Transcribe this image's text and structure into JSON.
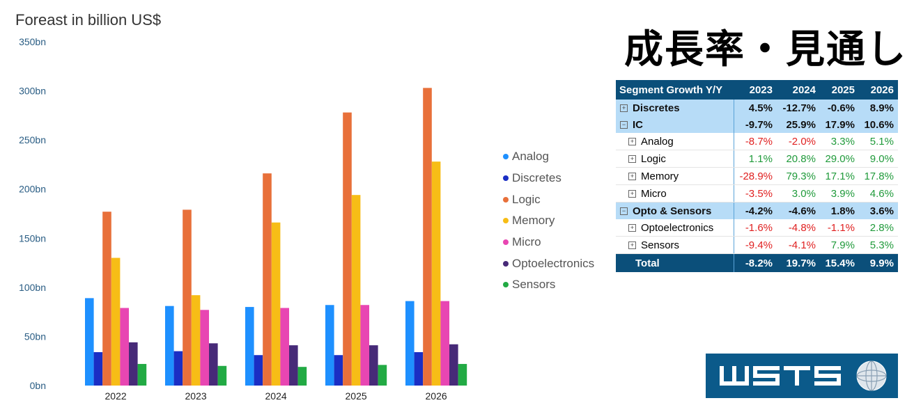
{
  "chart_data": {
    "type": "bar",
    "title": "Foreast in billion US$",
    "categories": [
      "2022",
      "2023",
      "2024",
      "2025",
      "2026"
    ],
    "series": [
      {
        "name": "Analog",
        "color": "#1e90ff",
        "values": [
          89,
          81,
          80,
          82,
          86
        ]
      },
      {
        "name": "Discretes",
        "color": "#1a2ec4",
        "values": [
          34,
          35,
          31,
          31,
          34
        ]
      },
      {
        "name": "Logic",
        "color": "#e8703a",
        "values": [
          177,
          179,
          216,
          278,
          303
        ]
      },
      {
        "name": "Memory",
        "color": "#f7bd16",
        "values": [
          130,
          92,
          166,
          194,
          228
        ]
      },
      {
        "name": "Micro",
        "color": "#e846b2",
        "values": [
          79,
          77,
          79,
          82,
          86
        ]
      },
      {
        "name": "Optoelectronics",
        "color": "#472a78",
        "values": [
          44,
          43,
          41,
          41,
          42
        ]
      },
      {
        "name": "Sensors",
        "color": "#22aa44",
        "values": [
          22,
          20,
          19,
          21,
          22
        ]
      }
    ],
    "yticks": [
      "0bn",
      "50bn",
      "100bn",
      "150bn",
      "200bn",
      "250bn",
      "300bn",
      "350bn"
    ],
    "ylim": [
      0,
      350
    ],
    "xlabel": "",
    "ylabel": "",
    "legend_position": "right",
    "grid": false
  },
  "heading": "成長率・見通し",
  "table": {
    "header": [
      "Segment Growth Y/Y",
      "2023",
      "2024",
      "2025",
      "2026"
    ],
    "rows": [
      {
        "type": "grp",
        "icon": "⊞",
        "label": "Discretes",
        "values": [
          "4.5%",
          "-12.7%",
          "-0.6%",
          "8.9%"
        ]
      },
      {
        "type": "grp",
        "icon": "⊟",
        "label": "IC",
        "values": [
          "-9.7%",
          "25.9%",
          "17.9%",
          "10.6%"
        ]
      },
      {
        "type": "sub",
        "icon": "⊞",
        "label": "Analog",
        "values": [
          "-8.7%",
          "-2.0%",
          "3.3%",
          "5.1%"
        ]
      },
      {
        "type": "sub",
        "icon": "⊞",
        "label": "Logic",
        "values": [
          "1.1%",
          "20.8%",
          "29.0%",
          "9.0%"
        ]
      },
      {
        "type": "sub",
        "icon": "⊞",
        "label": "Memory",
        "values": [
          "-28.9%",
          "79.3%",
          "17.1%",
          "17.8%"
        ]
      },
      {
        "type": "sub",
        "icon": "⊞",
        "label": "Micro",
        "values": [
          "-3.5%",
          "3.0%",
          "3.9%",
          "4.6%"
        ]
      },
      {
        "type": "grp",
        "icon": "⊟",
        "label": "Opto & Sensors",
        "values": [
          "-4.2%",
          "-4.6%",
          "1.8%",
          "3.6%"
        ]
      },
      {
        "type": "sub",
        "icon": "⊞",
        "label": "Optoelectronics",
        "values": [
          "-1.6%",
          "-4.8%",
          "-1.1%",
          "2.8%"
        ]
      },
      {
        "type": "sub",
        "icon": "⊞",
        "label": "Sensors",
        "values": [
          "-9.4%",
          "-4.1%",
          "7.9%",
          "5.3%"
        ]
      },
      {
        "type": "total",
        "icon": "",
        "label": "Total",
        "values": [
          "-8.2%",
          "19.7%",
          "15.4%",
          "9.9%"
        ]
      }
    ],
    "colors": {
      "negative": "#e02020",
      "positive": "#1f9a3a"
    }
  },
  "logo": {
    "text": "WSTS"
  }
}
